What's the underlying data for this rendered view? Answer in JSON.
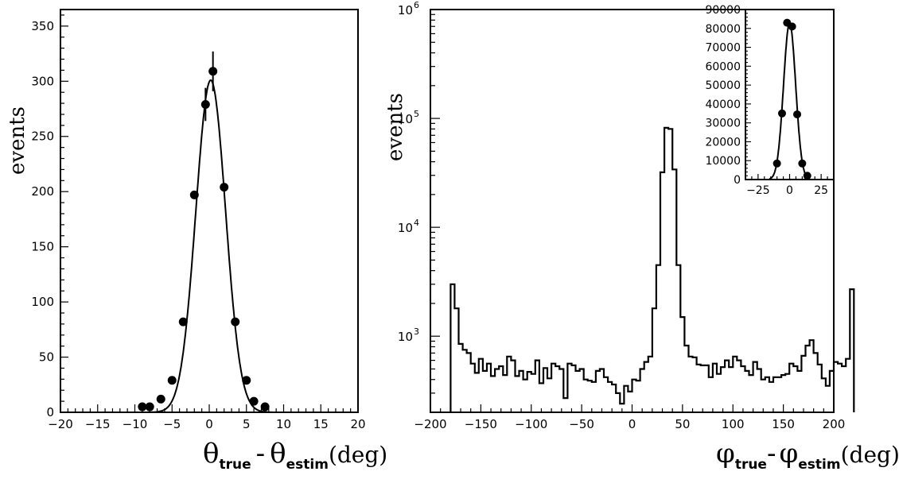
{
  "chart_data": [
    {
      "type": "scatter",
      "ylabel": "events",
      "xlabel": {
        "symbol": "θ",
        "sub1": "true",
        "minus": "-",
        "symbol2": "θ",
        "sub2": "estim",
        "unit": "(deg)"
      },
      "xlim": [
        -20,
        20
      ],
      "ylim": [
        0,
        365
      ],
      "x_ticks": [
        "−20",
        "−15",
        "−10",
        "−5",
        "0",
        "5",
        "10",
        "15",
        "20"
      ],
      "y_ticks": [
        "0",
        "50",
        "100",
        "150",
        "200",
        "250",
        "300",
        "350"
      ],
      "points": {
        "x": [
          -9,
          -8,
          -6.5,
          -5,
          -3.5,
          -2,
          -0.5,
          0.5,
          2,
          3.5,
          5,
          6,
          7.5
        ],
        "y": [
          5,
          5,
          12,
          29,
          82,
          197,
          279,
          309,
          204,
          82,
          29,
          10,
          5
        ],
        "errors": [
          0,
          0,
          0,
          0,
          0,
          0,
          15,
          18,
          0,
          0,
          0,
          0,
          0
        ]
      },
      "fit_curve": {
        "type": "gaussian",
        "amplitude": 301,
        "mean": 0.2,
        "sigma": 2.0
      }
    },
    {
      "type": "histogram",
      "ylabel": "events",
      "xlabel": {
        "symbol": "φ",
        "sub1": "true",
        "minus": "-",
        "symbol2": "φ",
        "sub2": "estim",
        "unit": "(deg)"
      },
      "xlim": [
        -200,
        200
      ],
      "ylim": [
        200,
        1000000
      ],
      "yscale": "log",
      "x_ticks": [
        "−200",
        "−150",
        "−100",
        "−50",
        "0",
        "50",
        "100",
        "150",
        "200"
      ],
      "y_ticks": [
        {
          "base": "10",
          "exp": "3"
        },
        {
          "base": "10",
          "exp": "4"
        },
        {
          "base": "10",
          "exp": "5"
        },
        {
          "base": "10",
          "exp": "6"
        }
      ],
      "bin_edges_start": -180,
      "bin_width": 4,
      "values": [
        3000,
        1800,
        850,
        750,
        700,
        560,
        460,
        620,
        480,
        560,
        430,
        500,
        530,
        440,
        650,
        600,
        430,
        480,
        400,
        470,
        450,
        600,
        370,
        510,
        410,
        560,
        530,
        500,
        270,
        560,
        540,
        480,
        500,
        400,
        390,
        380,
        480,
        500,
        420,
        380,
        360,
        300,
        240,
        350,
        310,
        400,
        390,
        500,
        580,
        650,
        1800,
        4500,
        32000,
        82000,
        80000,
        34000,
        4500,
        1500,
        820,
        650,
        640,
        550,
        540,
        540,
        420,
        560,
        450,
        520,
        600,
        520,
        650,
        600,
        530,
        480,
        440,
        580,
        500,
        400,
        420,
        380,
        420,
        420,
        440,
        450,
        560,
        530,
        480,
        660,
        820,
        920,
        700,
        550,
        410,
        350,
        480,
        580,
        560,
        530,
        620,
        2700
      ],
      "inset": {
        "type": "scatter",
        "xlim": [
          -35,
          35
        ],
        "ylim": [
          0,
          90000
        ],
        "x_ticks": [
          "−25",
          "0",
          "25"
        ],
        "y_ticks": [
          "0",
          "10000",
          "20000",
          "30000",
          "40000",
          "50000",
          "60000",
          "70000",
          "80000",
          "90000"
        ],
        "points": {
          "x": [
            -10,
            -6,
            -2,
            2,
            6,
            10,
            14
          ],
          "y": [
            8500,
            35000,
            83000,
            81000,
            34500,
            8500,
            2000
          ]
        },
        "fit_curve": {
          "type": "gaussian",
          "amplitude": 83000,
          "mean": 0,
          "sigma": 4.8
        }
      }
    }
  ]
}
